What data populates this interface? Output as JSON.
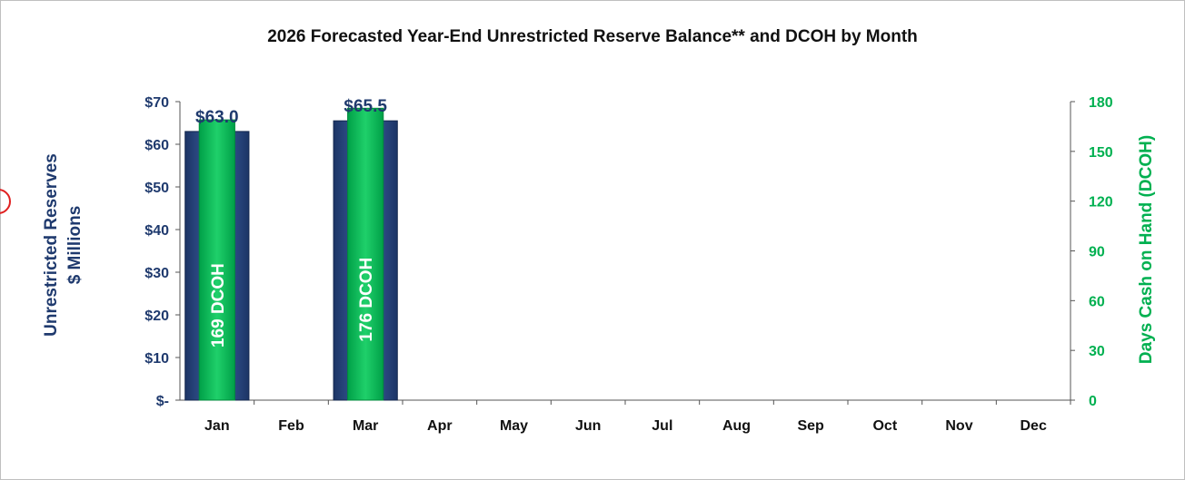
{
  "chart_data": {
    "type": "bar",
    "title": "2026 Forecasted Year-End Unrestricted Reserve Balance** and DCOH by Month",
    "ylabel_left_line1": "Unrestricted Reserves",
    "ylabel_left_line2": "$ Millions",
    "ylabel_right": "Days Cash on Hand (DCOH)",
    "categories": [
      "Jan",
      "Feb",
      "Mar",
      "Apr",
      "May",
      "Jun",
      "Jul",
      "Aug",
      "Sep",
      "Oct",
      "Nov",
      "Dec"
    ],
    "series": [
      {
        "name": "Unrestricted Reserves",
        "axis": "left",
        "values": [
          63.0,
          null,
          65.5,
          null,
          null,
          null,
          null,
          null,
          null,
          null,
          null,
          null
        ],
        "labels": [
          "$63.0",
          "",
          "$65.5",
          "",
          "",
          "",
          "",
          "",
          "",
          "",
          "",
          ""
        ],
        "color": "#2e4f8a"
      },
      {
        "name": "DCOH",
        "axis": "right",
        "values": [
          169,
          null,
          176,
          null,
          null,
          null,
          null,
          null,
          null,
          null,
          null,
          null
        ],
        "labels": [
          "169 DCOH",
          "",
          "176 DCOH",
          "",
          "",
          "",
          "",
          "",
          "",
          "",
          "",
          ""
        ],
        "color": "#00b050"
      }
    ],
    "y_left": {
      "min": 0,
      "max": 70,
      "ticks": [
        0,
        10,
        20,
        30,
        40,
        50,
        60,
        70
      ],
      "tick_labels": [
        "$-",
        "$10",
        "$20",
        "$30",
        "$40",
        "$50",
        "$60",
        "$70"
      ]
    },
    "y_right": {
      "min": 0,
      "max": 180,
      "ticks": [
        0,
        30,
        60,
        90,
        120,
        150,
        180
      ],
      "tick_labels": [
        "0",
        "30",
        "60",
        "90",
        "120",
        "150",
        "180"
      ]
    },
    "grid": false,
    "legend": "none"
  }
}
